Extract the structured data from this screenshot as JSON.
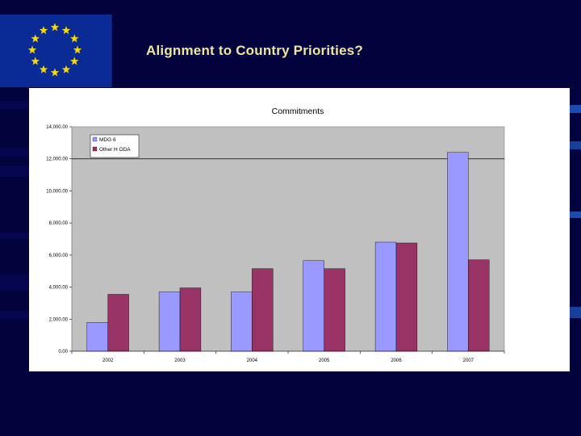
{
  "slide": {
    "title": "Alignment to Country Priorities?"
  },
  "logo": {
    "name": "eu-flag",
    "background": "#0a2a96",
    "star_color": "#f5d90a",
    "star_count": 12
  },
  "colors": {
    "page_background": "#02023c",
    "title_text": "#f0e6a0",
    "plot_area": "#c0c0c0",
    "series_mdg6": "#9999ff",
    "series_other": "#993366"
  },
  "chart_data": {
    "type": "bar",
    "title": "Commitments",
    "xlabel": "",
    "ylabel": "",
    "ylim": [
      0,
      14000
    ],
    "y_ticks": [
      0,
      2000,
      4000,
      6000,
      8000,
      10000,
      12000,
      14000
    ],
    "y_tick_labels": [
      "0.00",
      "2,000.00",
      "4,000.00",
      "6,000.00",
      "8,000.00",
      "10,000.00",
      "12,000.00",
      "14,000.00"
    ],
    "gridlines": [
      12000
    ],
    "legend_position": "top-left",
    "categories": [
      "2002",
      "2003",
      "2004",
      "2005",
      "2006",
      "2007"
    ],
    "series": [
      {
        "name": "MDG 6",
        "color": "#9999ff",
        "values": [
          1800,
          3700,
          3700,
          5650,
          6800,
          12400
        ]
      },
      {
        "name": "Other H ODA",
        "color": "#993366",
        "values": [
          3550,
          3950,
          5150,
          5150,
          6750,
          5700
        ]
      }
    ]
  }
}
